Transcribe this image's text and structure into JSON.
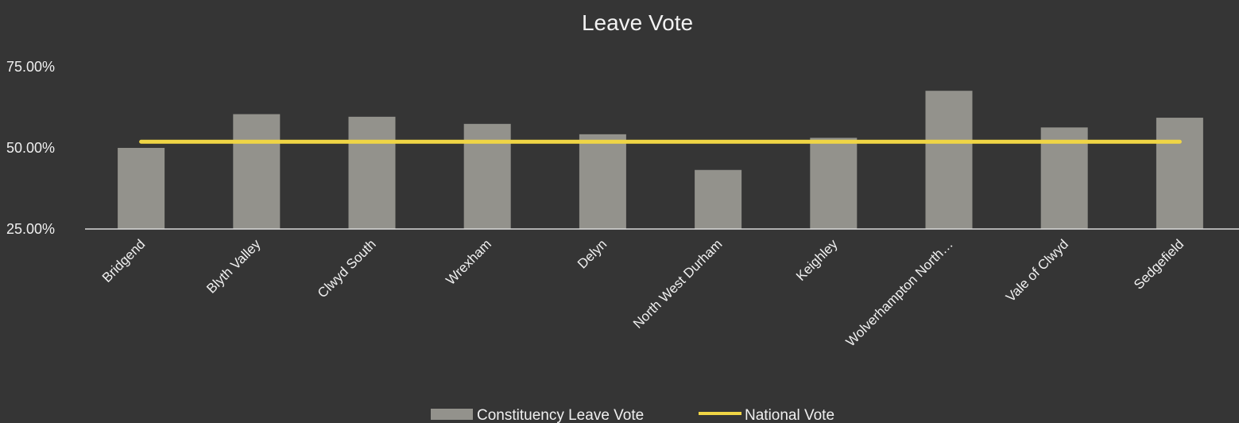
{
  "chart_data": {
    "type": "bar",
    "title": "Leave Vote",
    "categories": [
      "Bridgend",
      "Blyth Valley",
      "Clwyd South",
      "Wrexham",
      "Delyn",
      "North West Durham",
      "Keighley",
      "Wolverhampton North…",
      "Vale of Clwyd",
      "Sedgefield"
    ],
    "series": [
      {
        "name": "Constituency Leave Vote",
        "type": "bar",
        "color": "#93928c",
        "values": [
          50.0,
          60.4,
          59.6,
          57.4,
          54.2,
          43.2,
          53.1,
          67.6,
          56.3,
          59.3
        ]
      },
      {
        "name": "National Vote",
        "type": "line",
        "color": "#f0d545",
        "values": [
          51.9,
          51.9,
          51.9,
          51.9,
          51.9,
          51.9,
          51.9,
          51.9,
          51.9,
          51.9
        ]
      }
    ],
    "y_ticks": [
      "25.00%",
      "50.00%",
      "75.00%"
    ],
    "ylim": [
      25,
      75
    ],
    "grid": false,
    "legend_position": "bottom"
  }
}
